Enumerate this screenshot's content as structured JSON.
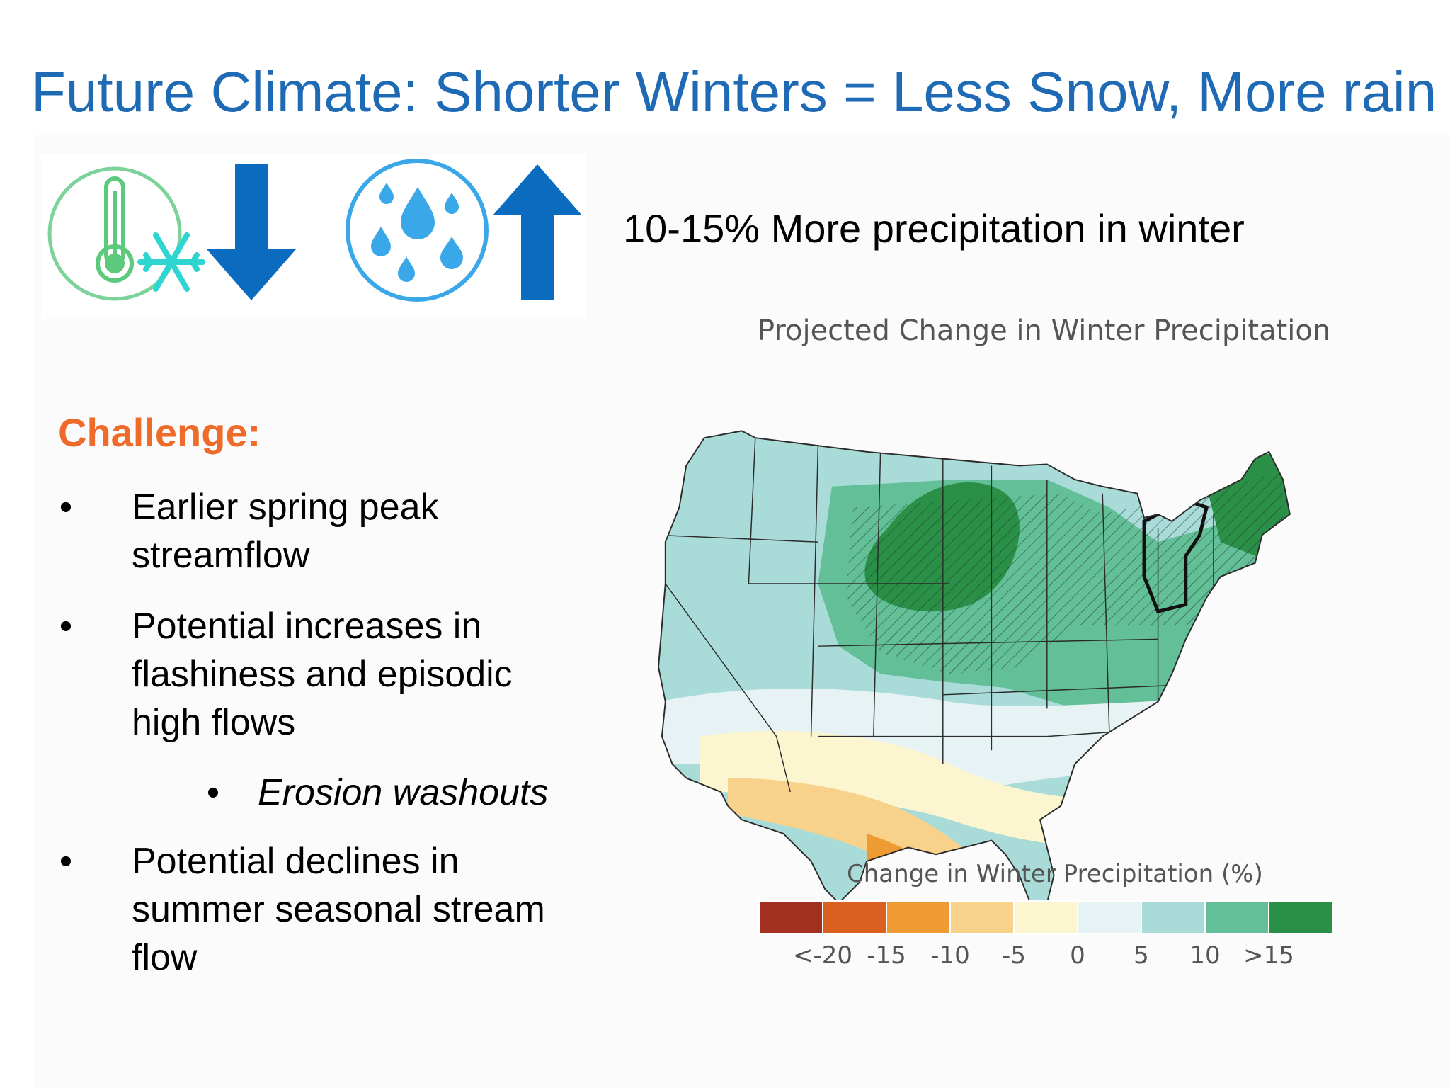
{
  "slide": {
    "title": "Future Climate: Shorter Winters = Less Snow, More rain",
    "subhead": "10-15% More precipitation in winter",
    "icons": [
      {
        "name": "thermometer-snowflake-icon",
        "meaning": "temperature / snow"
      },
      {
        "name": "arrow-down-icon",
        "color": "#0a6bbf"
      },
      {
        "name": "rain-drops-icon",
        "color": "#3aa8e8"
      },
      {
        "name": "arrow-up-icon",
        "color": "#0a6bbf"
      }
    ],
    "challenge_label": "Challenge:",
    "bullets": [
      {
        "text": "Earlier spring peak streamflow",
        "lines": [
          "Earlier spring peak",
          "streamflow"
        ]
      },
      {
        "text": "Potential increases in flashiness and episodic high flows",
        "lines": [
          "Potential increases in",
          "flashiness and episodic",
          "high flows"
        ]
      },
      {
        "text": "Erosion washouts",
        "sub": true
      },
      {
        "text": "Potential declines in summer seasonal stream flow",
        "lines": [
          "Potential declines in",
          "summer seasonal stream",
          "flow"
        ]
      }
    ],
    "bullet_char": "•"
  },
  "map": {
    "title": "Projected Change in Winter Precipitation",
    "legend_title": "Change in Winter Precipitation (%)",
    "legend_labels": [
      "<-20",
      "-15",
      "-10",
      "-5",
      "0",
      "5",
      "10",
      ">15"
    ],
    "legend_colors": [
      "#a3301e",
      "#d9601f",
      "#ef9b34",
      "#f8d28a",
      "#fbf6cf",
      "#e6f2f4",
      "#a9dcd8",
      "#62bf97",
      "#2a9048"
    ]
  },
  "colors": {
    "title": "#1f6ab4",
    "challenge": "#ee6b29",
    "thermo_green": "#5cc97d",
    "snow_teal": "#2fd6d1"
  }
}
